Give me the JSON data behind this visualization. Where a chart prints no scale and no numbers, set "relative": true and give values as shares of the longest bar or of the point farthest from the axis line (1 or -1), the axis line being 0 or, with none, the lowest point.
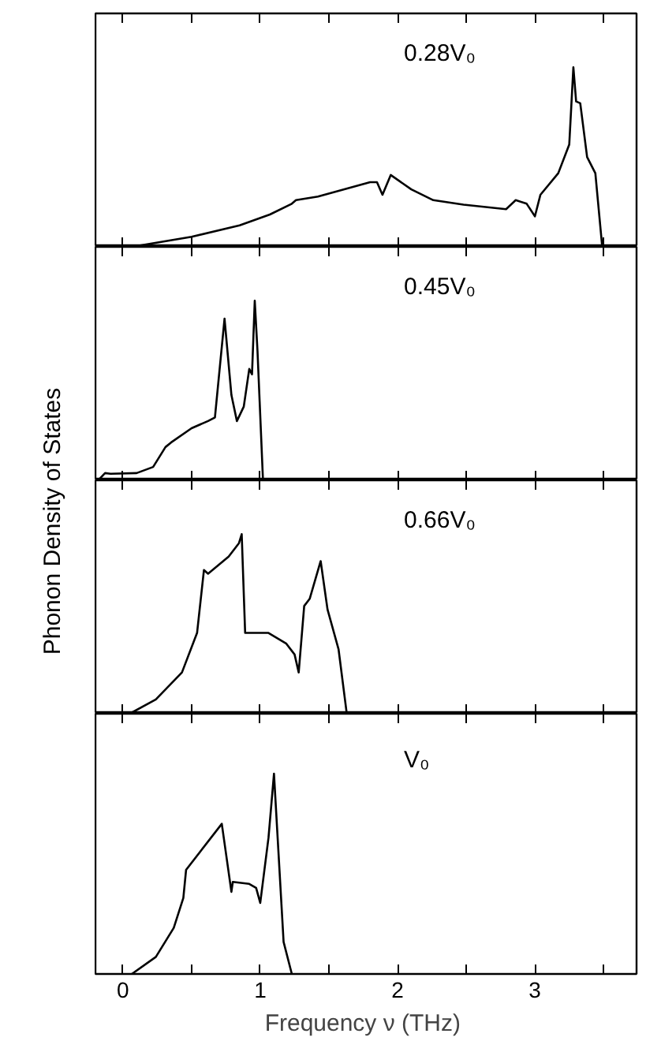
{
  "chart_data": [
    {
      "type": "line",
      "relative": true,
      "ylabel": "Phonon Density of States",
      "annotations": [
        "0.28V₀"
      ],
      "xlim": [
        -0.2,
        3.74
      ],
      "tick_labels": false,
      "grid": false,
      "xticks": [
        {
          "value": 0,
          "label": null
        },
        {
          "value": 0.5,
          "label": null
        },
        {
          "value": 1,
          "label": null
        },
        {
          "value": 1.5,
          "label": null
        },
        {
          "value": 2,
          "label": null
        },
        {
          "value": 2.5,
          "label": null
        },
        {
          "value": 3,
          "label": null
        },
        {
          "value": 3.5,
          "label": null
        }
      ],
      "series": [
        {
          "color": "#000000",
          "x": [
            0.065,
            0.5,
            0.85,
            1.07,
            1.23,
            1.26,
            1.42,
            1.8,
            1.85,
            1.89,
            1.95,
            2.1,
            2.26,
            2.48,
            2.79,
            2.86,
            2.94,
            3.0,
            3.04,
            3.17,
            3.25,
            3.28,
            3.3,
            3.33,
            3.38,
            3.44,
            3.49
          ],
          "values": [
            0,
            0.056,
            0.12,
            0.18,
            0.24,
            0.26,
            0.28,
            0.36,
            0.36,
            0.29,
            0.4,
            0.32,
            0.26,
            0.235,
            0.21,
            0.26,
            0.24,
            0.17,
            0.29,
            0.41,
            0.57,
            1.0,
            0.81,
            0.8,
            0.5,
            0.41,
            0
          ]
        }
      ]
    },
    {
      "type": "line",
      "relative": true,
      "annotations": [
        "0.45V₀"
      ],
      "xlim": [
        -0.2,
        3.74
      ],
      "tick_labels": false,
      "grid": false,
      "xticks": [
        {
          "value": 0,
          "label": null
        },
        {
          "value": 0.5,
          "label": null
        },
        {
          "value": 1,
          "label": null
        },
        {
          "value": 1.5,
          "label": null
        },
        {
          "value": 2,
          "label": null
        },
        {
          "value": 2.5,
          "label": null
        },
        {
          "value": 3,
          "label": null
        },
        {
          "value": 3.5,
          "label": null
        }
      ],
      "series": [
        {
          "color": "#000000",
          "x": [
            -0.18,
            -0.13,
            -0.09,
            0.1,
            0.22,
            0.31,
            0.35,
            0.5,
            0.62,
            0.67,
            0.74,
            0.79,
            0.83,
            0.88,
            0.92,
            0.94,
            0.96,
            0.98,
            1.02
          ],
          "values": [
            0,
            0.04,
            0.036,
            0.04,
            0.074,
            0.185,
            0.21,
            0.29,
            0.33,
            0.35,
            0.9,
            0.475,
            0.33,
            0.41,
            0.62,
            0.59,
            1.0,
            0.72,
            0
          ]
        }
      ]
    },
    {
      "type": "line",
      "relative": true,
      "annotations": [
        "0.66V₀"
      ],
      "xlim": [
        -0.2,
        3.74
      ],
      "tick_labels": false,
      "grid": false,
      "xticks": [
        {
          "value": 0,
          "label": null
        },
        {
          "value": 0.5,
          "label": null
        },
        {
          "value": 1,
          "label": null
        },
        {
          "value": 1.5,
          "label": null
        },
        {
          "value": 2,
          "label": null
        },
        {
          "value": 2.5,
          "label": null
        },
        {
          "value": 3,
          "label": null
        },
        {
          "value": 3.5,
          "label": null
        }
      ],
      "series": [
        {
          "color": "#000000",
          "x": [
            0.05,
            0.24,
            0.43,
            0.54,
            0.59,
            0.62,
            0.77,
            0.845,
            0.865,
            0.89,
            1.06,
            1.19,
            1.25,
            1.28,
            1.32,
            1.36,
            1.44,
            1.49,
            1.57,
            1.63
          ],
          "values": [
            0,
            0.08,
            0.23,
            0.45,
            0.8,
            0.78,
            0.875,
            0.95,
            1.0,
            0.45,
            0.45,
            0.39,
            0.33,
            0.23,
            0.6,
            0.64,
            0.85,
            0.58,
            0.36,
            0
          ]
        }
      ]
    },
    {
      "type": "line",
      "relative": true,
      "annotations": [
        "V₀"
      ],
      "xlabel": "Frequency ν  (THz)",
      "xlim": [
        -0.2,
        3.74
      ],
      "tick_labels": "x",
      "grid": false,
      "xticks": [
        0,
        {
          "value": 0.5,
          "label": null
        },
        1,
        {
          "value": 1.5,
          "label": null
        },
        2,
        {
          "value": 2.5,
          "label": null
        },
        3,
        {
          "value": 3.5,
          "label": null
        }
      ],
      "series": [
        {
          "color": "#000000",
          "x": [
            0.065,
            0.24,
            0.37,
            0.44,
            0.46,
            0.72,
            0.79,
            0.8,
            0.92,
            0.97,
            1.0,
            1.06,
            1.1,
            1.17,
            1.23
          ],
          "values": [
            0,
            0.085,
            0.23,
            0.38,
            0.52,
            0.75,
            0.41,
            0.46,
            0.45,
            0.43,
            0.355,
            0.68,
            1.0,
            0.16,
            0
          ]
        }
      ]
    }
  ]
}
